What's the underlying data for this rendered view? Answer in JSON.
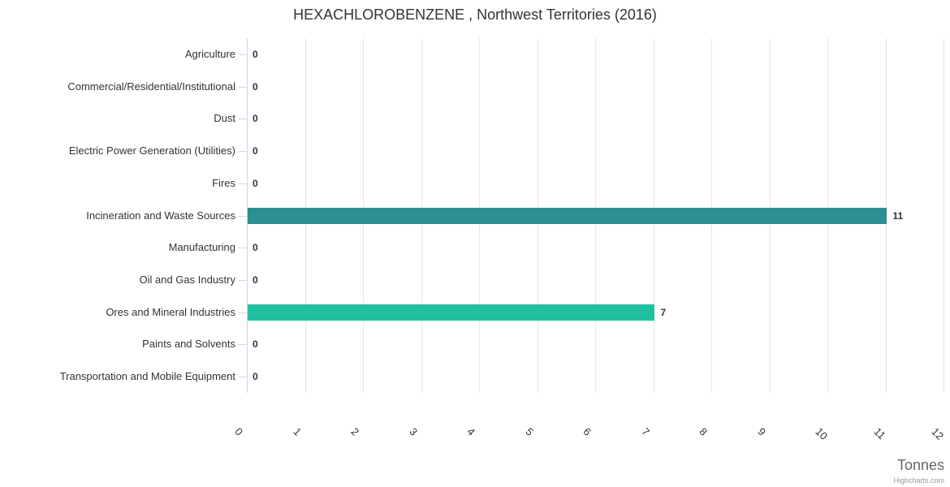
{
  "credits": {
    "label": "Highcharts.com"
  },
  "colors": {
    "background": "#ffffff",
    "grid": "#e6e6e6",
    "axis_line": "#ccd6eb",
    "tick": "#ccd6eb",
    "text": "#333333",
    "axis_title_text": "#666666",
    "credit_text": "#999999",
    "bar_incineration": "#2b908f",
    "bar_ores": "#1fbfa0"
  },
  "chart_data": {
    "type": "bar",
    "orientation": "horizontal",
    "title": "HEXACHLOROBENZENE , Northwest Territories (2016)",
    "categories": [
      "Agriculture",
      "Commercial/Residential/Institutional",
      "Dust",
      "Electric Power Generation (Utilities)",
      "Fires",
      "Incineration and Waste Sources",
      "Manufacturing",
      "Oil and Gas Industry",
      "Ores and Mineral Industries",
      "Paints and Solvents",
      "Transportation and Mobile Equipment"
    ],
    "values": [
      0,
      0,
      0,
      0,
      0,
      11,
      0,
      0,
      7,
      0,
      0
    ],
    "data_labels": [
      "0",
      "0",
      "0",
      "0",
      "0",
      "11",
      "0",
      "0",
      "7",
      "0",
      "0"
    ],
    "point_colors": [
      null,
      null,
      null,
      null,
      null,
      "#2b908f",
      null,
      null,
      "#1fbfa0",
      null,
      null
    ],
    "xlabel": "Tonnes",
    "ylabel": "",
    "xlim": [
      0,
      12
    ],
    "x_ticks": [
      "0",
      "1",
      "2",
      "3",
      "4",
      "5",
      "6",
      "7",
      "8",
      "9",
      "10",
      "11",
      "12"
    ],
    "grid": true,
    "legend": false,
    "data_labels_enabled": true
  }
}
